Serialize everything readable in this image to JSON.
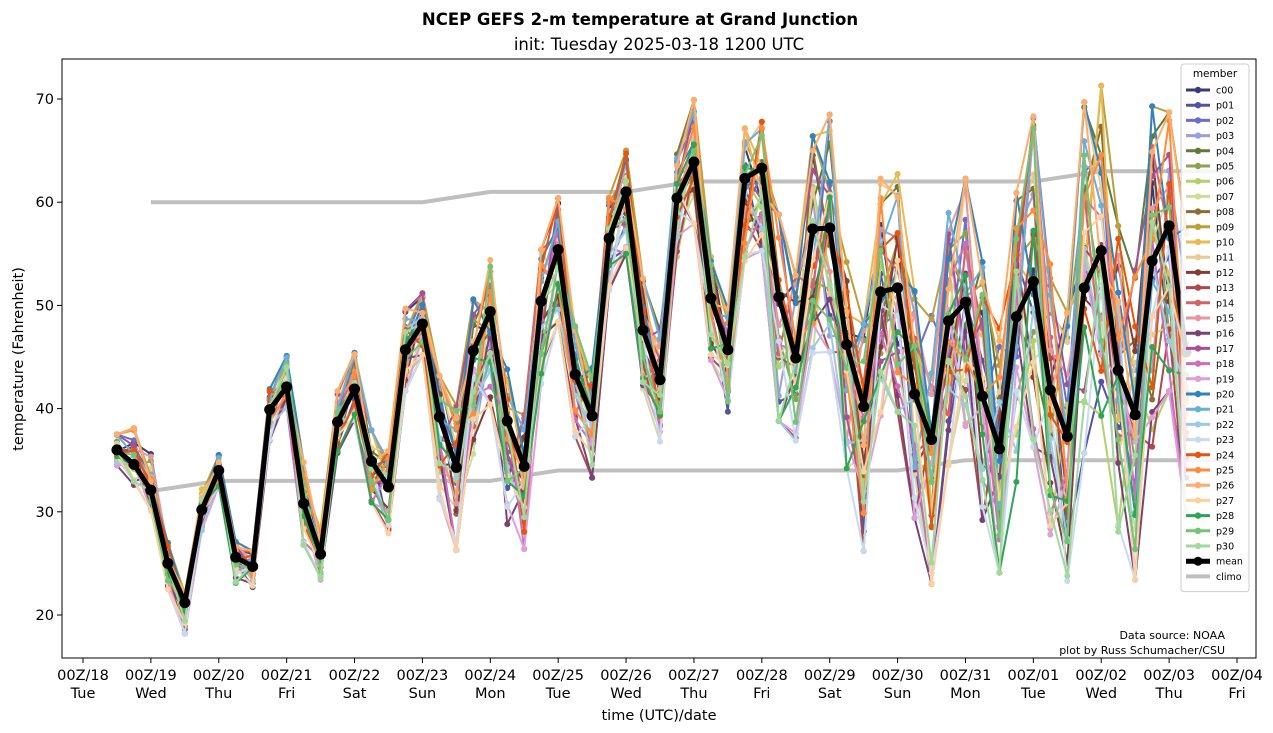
{
  "chart_data": {
    "type": "line",
    "title": "NCEP GEFS 2-m temperature at Grand Junction",
    "subtitle": "init: Tuesday 2025-03-18 1200 UTC",
    "xlabel": "time (UTC)/date",
    "ylabel": "temperature (Fahrenheit)",
    "ylim": [
      16,
      74
    ],
    "xlim_hours_from_00Z18": [
      0,
      408
    ],
    "grid": false,
    "legend": {
      "title": "member",
      "placement": "right"
    },
    "yticks": [
      20,
      30,
      40,
      50,
      60,
      70
    ],
    "xticks": [
      {
        "line1": "00Z/18",
        "line2": "Tue"
      },
      {
        "line1": "00Z/19",
        "line2": "Wed"
      },
      {
        "line1": "00Z/20",
        "line2": "Thu"
      },
      {
        "line1": "00Z/21",
        "line2": "Fri"
      },
      {
        "line1": "00Z/22",
        "line2": "Sat"
      },
      {
        "line1": "00Z/23",
        "line2": "Sun"
      },
      {
        "line1": "00Z/24",
        "line2": "Mon"
      },
      {
        "line1": "00Z/25",
        "line2": "Tue"
      },
      {
        "line1": "00Z/26",
        "line2": "Wed"
      },
      {
        "line1": "00Z/27",
        "line2": "Thu"
      },
      {
        "line1": "00Z/28",
        "line2": "Fri"
      },
      {
        "line1": "00Z/29",
        "line2": "Sat"
      },
      {
        "line1": "00Z/30",
        "line2": "Sun"
      },
      {
        "line1": "00Z/31",
        "line2": "Mon"
      },
      {
        "line1": "00Z/01",
        "line2": "Tue"
      },
      {
        "line1": "00Z/02",
        "line2": "Wed"
      },
      {
        "line1": "00Z/03",
        "line2": "Thu"
      },
      {
        "line1": "00Z/04",
        "line2": "Fri"
      }
    ],
    "time_step_hours": 6,
    "start_hour": 12,
    "members": [
      {
        "name": "c00",
        "color": "#393b79"
      },
      {
        "name": "p01",
        "color": "#5254a3"
      },
      {
        "name": "p02",
        "color": "#6b6ecf"
      },
      {
        "name": "p03",
        "color": "#9c9ede"
      },
      {
        "name": "p04",
        "color": "#637939"
      },
      {
        "name": "p05",
        "color": "#8ca252"
      },
      {
        "name": "p06",
        "color": "#b5cf6b"
      },
      {
        "name": "p07",
        "color": "#cedb9c"
      },
      {
        "name": "p08",
        "color": "#8c6d31"
      },
      {
        "name": "p09",
        "color": "#bd9e39"
      },
      {
        "name": "p10",
        "color": "#e7ba52"
      },
      {
        "name": "p11",
        "color": "#e7cb94"
      },
      {
        "name": "p12",
        "color": "#843c39"
      },
      {
        "name": "p13",
        "color": "#ad494a"
      },
      {
        "name": "p14",
        "color": "#d6616b"
      },
      {
        "name": "p15",
        "color": "#e7969c"
      },
      {
        "name": "p16",
        "color": "#7b4173"
      },
      {
        "name": "p17",
        "color": "#a55194"
      },
      {
        "name": "p18",
        "color": "#ce6dbd"
      },
      {
        "name": "p19",
        "color": "#de9ed6"
      },
      {
        "name": "p20",
        "color": "#3182bd"
      },
      {
        "name": "p21",
        "color": "#6baed6"
      },
      {
        "name": "p22",
        "color": "#9ecae1"
      },
      {
        "name": "p23",
        "color": "#c6dbef"
      },
      {
        "name": "p24",
        "color": "#e6550d"
      },
      {
        "name": "p25",
        "color": "#fd8d3c"
      },
      {
        "name": "p26",
        "color": "#fdae6b"
      },
      {
        "name": "p27",
        "color": "#fdd0a2"
      },
      {
        "name": "p28",
        "color": "#31a354"
      },
      {
        "name": "p29",
        "color": "#74c476"
      },
      {
        "name": "p30",
        "color": "#a1d99b"
      }
    ],
    "mean": {
      "name": "mean",
      "color": "#000000",
      "values": [
        36.0,
        34.6,
        32.1,
        25.0,
        21.2,
        30.2,
        34.0,
        25.6,
        24.7,
        39.9,
        42.1,
        30.8,
        25.9,
        38.7,
        41.9,
        34.9,
        32.4,
        45.7,
        48.2,
        39.2,
        34.3,
        45.6,
        49.4,
        38.8,
        34.4,
        50.4,
        55.4,
        43.3,
        39.3,
        56.5,
        61.0,
        47.6,
        42.8,
        60.4,
        63.9,
        50.7,
        45.7,
        62.3,
        63.3,
        50.8,
        44.9,
        57.4,
        57.5,
        46.2,
        40.2,
        51.3,
        51.7,
        41.4,
        37.0,
        48.5,
        50.3,
        41.2,
        36.1,
        48.9,
        52.3,
        41.8,
        37.3,
        51.7,
        55.3,
        43.7,
        39.4,
        54.3,
        57.7,
        45.5
      ]
    },
    "member_spread": {
      "description": "approximate per-step spread (min, max) of ensemble members around mean",
      "low_offset": [
        -1.5,
        -2,
        -2,
        -2.5,
        -3,
        -2,
        -1.5,
        -2.5,
        -2,
        -3,
        -2,
        -4,
        -2.5,
        -3,
        -3,
        -4,
        -4.5,
        -4,
        -3,
        -8,
        -8,
        -10,
        -9,
        -10,
        -8,
        -8,
        -7,
        -6,
        -6,
        -5,
        -6,
        -6,
        -6,
        -6,
        -6,
        -6,
        -6,
        -8,
        -8,
        -12,
        -8,
        -12,
        -12,
        -12,
        -14,
        -12,
        -12,
        -12,
        -14,
        -14,
        -12,
        -12,
        -12,
        -16,
        -16,
        -14,
        -14,
        -16,
        -16,
        -16,
        -16,
        -18,
        -16,
        -16
      ],
      "high_offset": [
        1.5,
        3.5,
        3.5,
        2,
        1.5,
        2,
        1.5,
        1.5,
        1.5,
        2,
        3,
        4,
        2.5,
        3,
        3.5,
        3,
        3.5,
        4,
        3,
        4,
        6,
        5,
        5,
        5,
        5,
        5,
        5,
        5,
        5,
        4,
        4,
        5,
        5,
        5,
        6,
        4,
        4,
        5,
        4.5,
        8,
        8,
        9,
        11,
        8,
        8,
        11,
        12,
        10,
        12,
        12,
        12,
        13,
        12,
        12,
        16,
        13,
        12,
        18,
        16,
        14,
        14,
        15,
        11,
        12
      ]
    },
    "climo": {
      "name": "climo",
      "color": "#bfbfbf",
      "max_days": [
        19,
        20,
        21,
        22,
        23,
        24,
        25,
        26,
        27,
        28,
        29,
        30,
        31,
        32,
        33,
        34,
        35
      ],
      "max_values": [
        60,
        60,
        60,
        60,
        60,
        61,
        61,
        61,
        62,
        62,
        62,
        62,
        62,
        62,
        63,
        63,
        63
      ],
      "min_days": [
        19,
        20,
        21,
        22,
        23,
        24,
        25,
        26,
        27,
        28,
        29,
        30,
        31,
        32,
        33,
        34,
        35
      ],
      "min_values": [
        32,
        33,
        33,
        33,
        33,
        33,
        34,
        34,
        34,
        34,
        34,
        34,
        35,
        35,
        35,
        35,
        35
      ]
    },
    "annotations": [
      "Data source: NOAA",
      "plot by Russ Schumacher/CSU"
    ]
  }
}
